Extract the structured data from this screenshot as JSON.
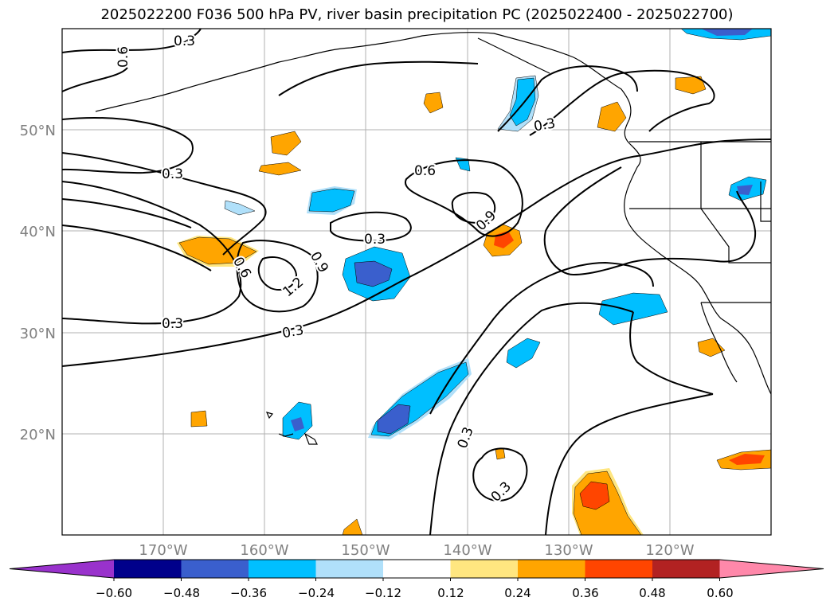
{
  "title": "2025022200 F036 500 hPa PV, river basin precipitation PC (2025022400 - 2025022700)",
  "lat_labels": [
    "50°N",
    "40°N",
    "30°N",
    "20°N"
  ],
  "lon_labels": [
    "170°W",
    "160°W",
    "150°W",
    "140°W",
    "130°W",
    "120°W"
  ],
  "contour_labels": [
    "0.3",
    "0.6",
    "0.3",
    "0.6",
    "0.9",
    "0.3",
    "0.9",
    "1.2",
    "0.6",
    "0.3",
    "0.3",
    "0.3",
    "0.3",
    "0.3"
  ],
  "colorbar": {
    "tick_labels": [
      "−0.60",
      "−0.48",
      "−0.36",
      "−0.24",
      "−0.12",
      "0.12",
      "0.24",
      "0.36",
      "0.48",
      "0.60"
    ],
    "colors": [
      "#9932cc",
      "#00008b",
      "#3a5fcd",
      "#00bfff",
      "#b0e0fa",
      "#ffffff",
      "#ffe680",
      "#ffa500",
      "#ff4500",
      "#b22222",
      "#ff88aa"
    ]
  }
}
